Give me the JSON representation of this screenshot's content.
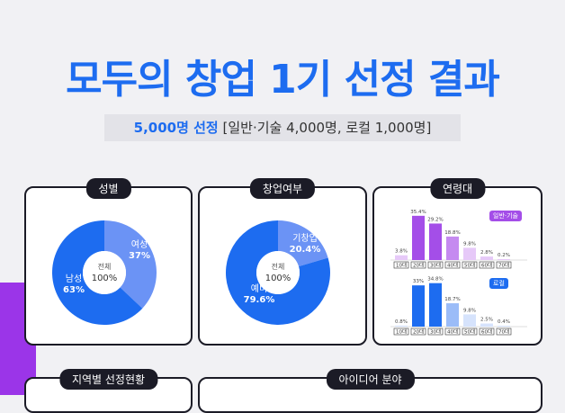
{
  "header": {
    "title": "모두의 창업 1기 선정 결과",
    "subtitle_highlight": "5,000명 선정",
    "subtitle_rest": "[일반·기술 4,000명, 로컬 1,000명]"
  },
  "panels": {
    "gender": {
      "label": "성별",
      "center_top": "전체",
      "center_bottom": "100%"
    },
    "startup": {
      "label": "창업여부",
      "center_top": "전체",
      "center_bottom": "100%"
    },
    "age": {
      "label": "연령대",
      "legend_general": "일반·기술",
      "legend_local": "로컬"
    },
    "region": {
      "label": "지역별 선정현황"
    },
    "idea": {
      "label": "아이디어 분야"
    }
  },
  "colors": {
    "blue": "#1d6cf0",
    "light_blue": "#6b93f5",
    "purple_dark": "#a44ee8",
    "purple_mid": "#c58af0",
    "purple_light": "#e6c9f8",
    "blue_light": "#9bbcf8",
    "blue_pale": "#d6e3fc"
  },
  "chart_data": [
    {
      "type": "pie",
      "categories": [
        "여성",
        "남성"
      ],
      "values": [
        37,
        63
      ]
    },
    {
      "type": "pie",
      "categories": [
        "기창업",
        "예비"
      ],
      "values": [
        20.4,
        79.6
      ]
    },
    {
      "type": "bar",
      "categories": [
        "10대",
        "20대",
        "30대",
        "40대",
        "50대",
        "60대",
        "70대"
      ],
      "series": [
        {
          "name": "일반·기술",
          "values": [
            3.8,
            35.4,
            29.2,
            18.8,
            9.8,
            2.8,
            0.2
          ]
        }
      ],
      "value_labels": [
        "3.8%",
        "35.4%",
        "29.2%",
        "18.8%",
        "9.8%",
        "2.8%",
        "0.2%"
      ]
    },
    {
      "type": "bar",
      "categories": [
        "10대",
        "20대",
        "30대",
        "40대",
        "50대",
        "60대",
        "70대"
      ],
      "series": [
        {
          "name": "로컬",
          "values": [
            0.8,
            33,
            34.8,
            18.7,
            9.8,
            2.5,
            0.4
          ]
        }
      ],
      "value_labels": [
        "0.8%",
        "33%",
        "34.8%",
        "18.7%",
        "9.8%",
        "2.5%",
        "0.4%"
      ]
    }
  ]
}
